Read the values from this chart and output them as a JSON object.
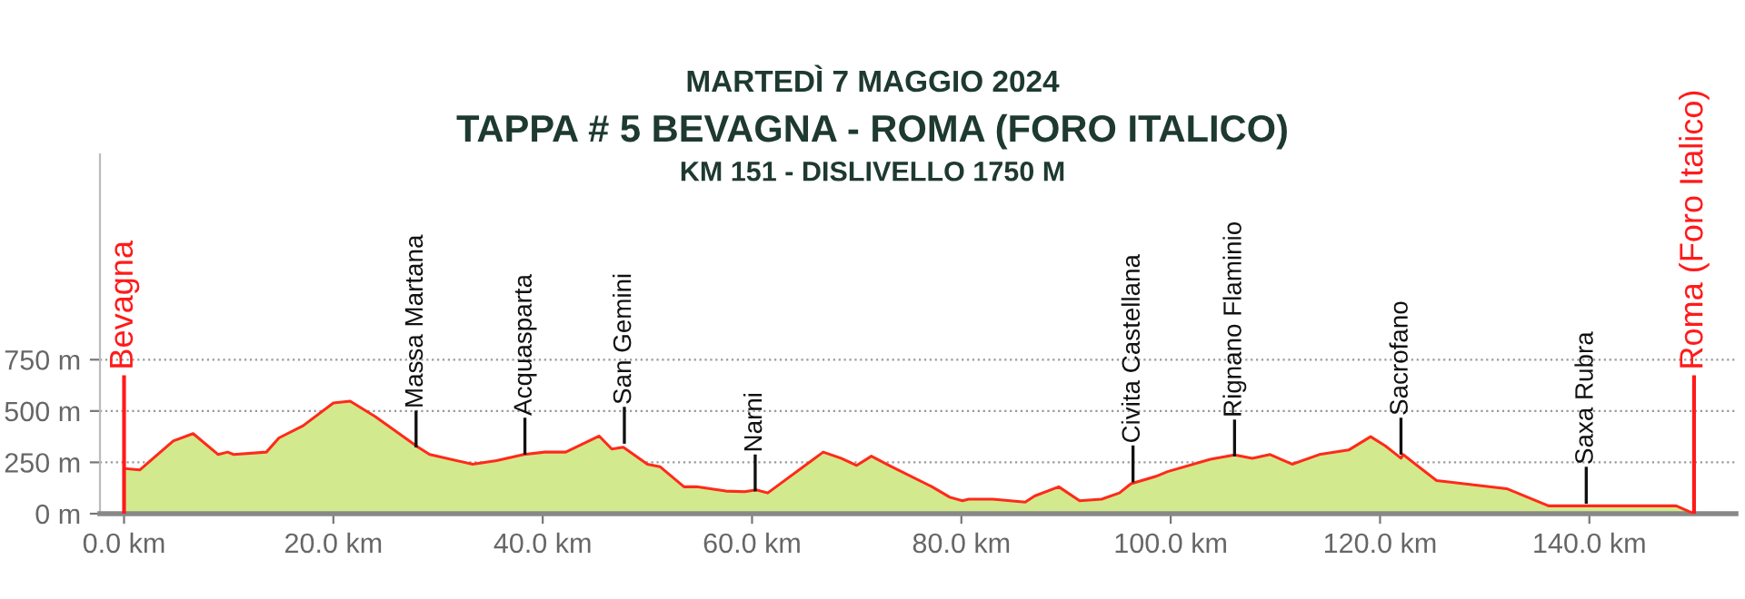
{
  "chart_data": {
    "type": "area",
    "title": "TAPPA # 5 BEVAGNA - ROMA (FORO ITALICO)",
    "subtitle": "KM 151 - DISLIVELLO 1750 M",
    "series": [
      {
        "color": "#d3e98e",
        "x": [
          0,
          1.5,
          4.7,
          6.6,
          9.0,
          9.9,
          10.5,
          13.6,
          14.8,
          17.1,
          20.0,
          21.6,
          24.0,
          28.1,
          29.2,
          33.3,
          35.6,
          38.2,
          40.2,
          42.2,
          45.4,
          46.6,
          47.7,
          50.0,
          51.2,
          53.5,
          54.7,
          57.5,
          59.3,
          60.4,
          61.5,
          66.8,
          68.5,
          70.0,
          71.4,
          73.1,
          77.2,
          78.9,
          80.1,
          80.7,
          83.0,
          86.1,
          87.0,
          89.3,
          91.3,
          93.4,
          95.1,
          96.2,
          98.6,
          99.7,
          103.8,
          106.1,
          107.8,
          109.5,
          111.6,
          114.2,
          117.0,
          119.1,
          120.5,
          122.0,
          122.2,
          125.4,
          126.9,
          132.1,
          134.1,
          136.1,
          148.3,
          150.0
        ],
        "values": [
          220,
          213,
          354,
          390,
          288,
          300,
          288,
          300,
          369,
          428,
          539,
          548,
          473,
          324,
          288,
          241,
          259,
          288,
          300,
          300,
          378,
          315,
          324,
          241,
          229,
          131,
          131,
          110,
          107,
          116,
          101,
          300,
          270,
          235,
          280,
          235,
          131,
          80,
          63,
          71,
          71,
          56,
          86,
          131,
          63,
          71,
          101,
          146,
          182,
          205,
          265,
          286,
          270,
          288,
          241,
          288,
          310,
          375,
          330,
          270,
          288,
          161,
          152,
          122,
          80,
          38,
          38,
          0
        ]
      }
    ],
    "xlim": [
      -2.3,
      154
    ],
    "ylim": [
      0,
      1750
    ],
    "xticks": [
      {
        "value": 0,
        "label": "0.0 km"
      },
      {
        "value": 20,
        "label": "20.0 km"
      },
      {
        "value": 40,
        "label": "40.0 km"
      },
      {
        "value": 60,
        "label": "60.0 km"
      },
      {
        "value": 80,
        "label": "80.0 km"
      },
      {
        "value": 100,
        "label": "100.0 km"
      },
      {
        "value": 120,
        "label": "120.0 km"
      },
      {
        "value": 140,
        "label": "140.0 km"
      }
    ],
    "yticks": [
      {
        "value": 0,
        "label": "0 m"
      },
      {
        "value": 250,
        "label": "250 m"
      },
      {
        "value": 500,
        "label": "500 m"
      },
      {
        "value": 750,
        "label": "750 m"
      }
    ],
    "grid": "y",
    "ref_lines": [
      {
        "axis": "x",
        "value": 0,
        "label": "Bevagna",
        "color": "#ff1a1a"
      },
      {
        "axis": "x",
        "value": 150,
        "label": "Roma (Foro Italico)",
        "color": "#ff1a1a"
      }
    ],
    "annotations": [
      "MARTEDÌ 7 MAGGIO 2024",
      {
        "text": "Massa Martana",
        "x": 27.9,
        "y": 330
      },
      {
        "text": "Acquasparta",
        "x": 38.3,
        "y": 295
      },
      {
        "text": "San Gemini",
        "x": 47.8,
        "y": 348
      },
      {
        "text": "Narni",
        "x": 60.3,
        "y": 116
      },
      {
        "text": "Civita Castellana",
        "x": 96.4,
        "y": 160
      },
      {
        "text": "Rignano Flaminio",
        "x": 106.1,
        "y": 286
      },
      {
        "text": "Sacrofano",
        "x": 122.0,
        "y": 295
      },
      {
        "text": "Saxa Rubra",
        "x": 139.7,
        "y": 56
      }
    ]
  }
}
